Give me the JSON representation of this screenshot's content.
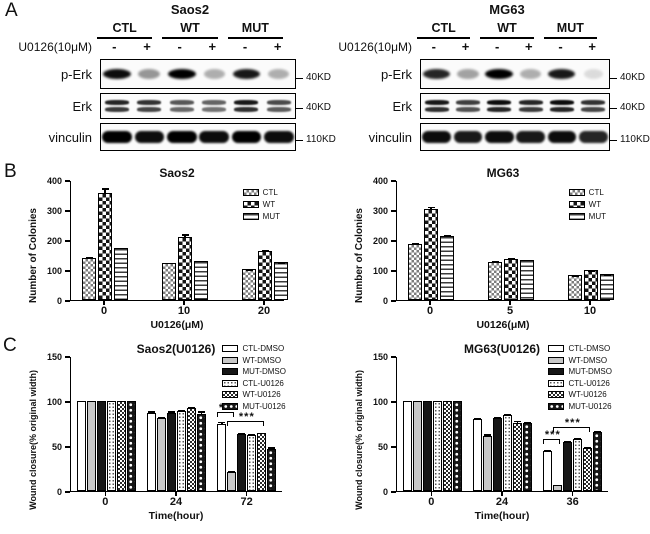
{
  "panels": {
    "a": "A",
    "b": "B",
    "c": "C"
  },
  "blots": {
    "treatment_label": "U0126(10μM)",
    "groups": [
      {
        "title": "Saos2",
        "lanes": [
          "CTL",
          "WT",
          "MUT"
        ],
        "signs": [
          "-",
          "+",
          "-",
          "+",
          "-",
          "+"
        ],
        "rows": [
          {
            "label": "p-Erk",
            "marker": "40KD",
            "band": "single",
            "intensities": [
              0.95,
              0.4,
              1.0,
              0.3,
              0.9,
              0.3
            ]
          },
          {
            "label": "Erk",
            "marker": "40KD",
            "band": "double",
            "intensities": [
              0.85,
              0.8,
              0.65,
              0.6,
              0.9,
              0.7
            ]
          },
          {
            "label": "vinculin",
            "marker": "110KD",
            "band": "thick",
            "intensities": [
              1.0,
              0.95,
              1.0,
              0.95,
              1.0,
              0.95
            ]
          }
        ]
      },
      {
        "title": "MG63",
        "lanes": [
          "CTL",
          "WT",
          "MUT"
        ],
        "signs": [
          "-",
          "+",
          "-",
          "+",
          "-",
          "+"
        ],
        "rows": [
          {
            "label": "p-Erk",
            "marker": "40KD",
            "band": "single",
            "intensities": [
              0.85,
              0.35,
              1.0,
              0.3,
              0.9,
              0.12
            ]
          },
          {
            "label": "Erk",
            "marker": "40KD",
            "band": "double",
            "intensities": [
              0.9,
              0.75,
              0.95,
              0.85,
              0.95,
              0.8
            ]
          },
          {
            "label": "vinculin",
            "marker": "110KD",
            "band": "thick",
            "intensities": [
              0.95,
              0.9,
              0.95,
              0.9,
              0.95,
              0.85
            ]
          }
        ]
      }
    ]
  },
  "chart_data": [
    {
      "type": "bar",
      "id": "colonies-saos2",
      "title": "Saos2",
      "xlabel": "U0126(μM)",
      "ylabel": "Number of Colonies",
      "ylim": [
        0,
        400
      ],
      "yticks": [
        0,
        100,
        200,
        300,
        400
      ],
      "categories": [
        "0",
        "10",
        "20"
      ],
      "legend_position": "top-right",
      "grid": false,
      "series": [
        {
          "name": "CTL",
          "pattern": "checker-gray",
          "values": [
            140,
            122,
            103
          ],
          "errors": [
            6,
            5,
            3
          ]
        },
        {
          "name": "WT",
          "pattern": "checker-black",
          "values": [
            358,
            210,
            165
          ],
          "errors": [
            18,
            12,
            5
          ]
        },
        {
          "name": "MUT",
          "pattern": "hlines",
          "values": [
            172,
            130,
            126
          ],
          "errors": [
            5,
            5,
            4
          ]
        }
      ]
    },
    {
      "type": "bar",
      "id": "colonies-mg63",
      "title": "MG63",
      "xlabel": "U0126(μM)",
      "ylabel": "Number of Colonies",
      "ylim": [
        0,
        400
      ],
      "yticks": [
        0,
        100,
        200,
        300,
        400
      ],
      "categories": [
        "0",
        "5",
        "10"
      ],
      "legend_position": "top-right",
      "grid": false,
      "series": [
        {
          "name": "CTL",
          "pattern": "checker-gray",
          "values": [
            188,
            127,
            82
          ],
          "errors": [
            5,
            5,
            3
          ]
        },
        {
          "name": "WT",
          "pattern": "checker-black",
          "values": [
            305,
            138,
            99
          ],
          "errors": [
            10,
            5,
            4
          ]
        },
        {
          "name": "MUT",
          "pattern": "hlines",
          "values": [
            215,
            133,
            87
          ],
          "errors": [
            6,
            4,
            3
          ]
        }
      ]
    },
    {
      "type": "bar",
      "id": "wound-saos2",
      "title": "Saos2(U0126)",
      "xlabel": "Time(hour)",
      "ylabel": "Wound closure(% original width)",
      "ylim": [
        0,
        150
      ],
      "yticks": [
        0,
        50,
        100,
        150
      ],
      "categories": [
        "0",
        "24",
        "72"
      ],
      "legend_position": "top-right",
      "grid": false,
      "series": [
        {
          "name": "CTL-DMSO",
          "pattern": "white",
          "values": [
            100,
            87,
            75
          ],
          "errors": [
            0,
            3,
            3
          ]
        },
        {
          "name": "WT-DMSO",
          "pattern": "gray",
          "values": [
            100,
            81,
            21
          ],
          "errors": [
            0,
            2,
            2
          ]
        },
        {
          "name": "MUT-DMSO",
          "pattern": "black",
          "values": [
            100,
            87,
            63
          ],
          "errors": [
            0,
            3,
            3
          ]
        },
        {
          "name": "CTL-U0126",
          "pattern": "dots-fine",
          "values": [
            100,
            89,
            62
          ],
          "errors": [
            0,
            2,
            3
          ]
        },
        {
          "name": "WT-U0126",
          "pattern": "checker-fine",
          "values": [
            100,
            92,
            64
          ],
          "errors": [
            0,
            2,
            2
          ]
        },
        {
          "name": "MUT-U0126",
          "pattern": "polka-black",
          "values": [
            100,
            86,
            47
          ],
          "errors": [
            0,
            4,
            3
          ]
        }
      ],
      "annotations": [
        {
          "text": "***",
          "group": 2,
          "from": 0,
          "to": 1
        },
        {
          "text": "***",
          "group": 2,
          "from": 1,
          "to": 4
        }
      ]
    },
    {
      "type": "bar",
      "id": "wound-mg63",
      "title": "MG63(U0126)",
      "xlabel": "Time(hour)",
      "ylabel": "Wound closure(% original width)",
      "ylim": [
        0,
        150
      ],
      "yticks": [
        0,
        50,
        100,
        150
      ],
      "categories": [
        "0",
        "24",
        "36"
      ],
      "legend_position": "top-right",
      "grid": false,
      "series": [
        {
          "name": "CTL-DMSO",
          "pattern": "white",
          "values": [
            100,
            80,
            45
          ],
          "errors": [
            0,
            2,
            2
          ]
        },
        {
          "name": "WT-DMSO",
          "pattern": "gray",
          "values": [
            100,
            61,
            7
          ],
          "errors": [
            0,
            3,
            1
          ]
        },
        {
          "name": "MUT-DMSO",
          "pattern": "black",
          "values": [
            100,
            81,
            55
          ],
          "errors": [
            0,
            2,
            2
          ]
        },
        {
          "name": "CTL-U0126",
          "pattern": "dots-fine",
          "values": [
            100,
            85,
            58
          ],
          "errors": [
            0,
            2,
            2
          ]
        },
        {
          "name": "WT-U0126",
          "pattern": "checker-fine",
          "values": [
            100,
            76,
            48
          ],
          "errors": [
            0,
            3,
            2
          ]
        },
        {
          "name": "MUT-U0126",
          "pattern": "polka-black",
          "values": [
            100,
            76,
            66
          ],
          "errors": [
            0,
            2,
            2
          ]
        }
      ],
      "annotations": [
        {
          "text": "***",
          "group": 2,
          "from": 0,
          "to": 1
        },
        {
          "text": "***",
          "group": 2,
          "from": 1,
          "to": 4
        }
      ]
    }
  ]
}
